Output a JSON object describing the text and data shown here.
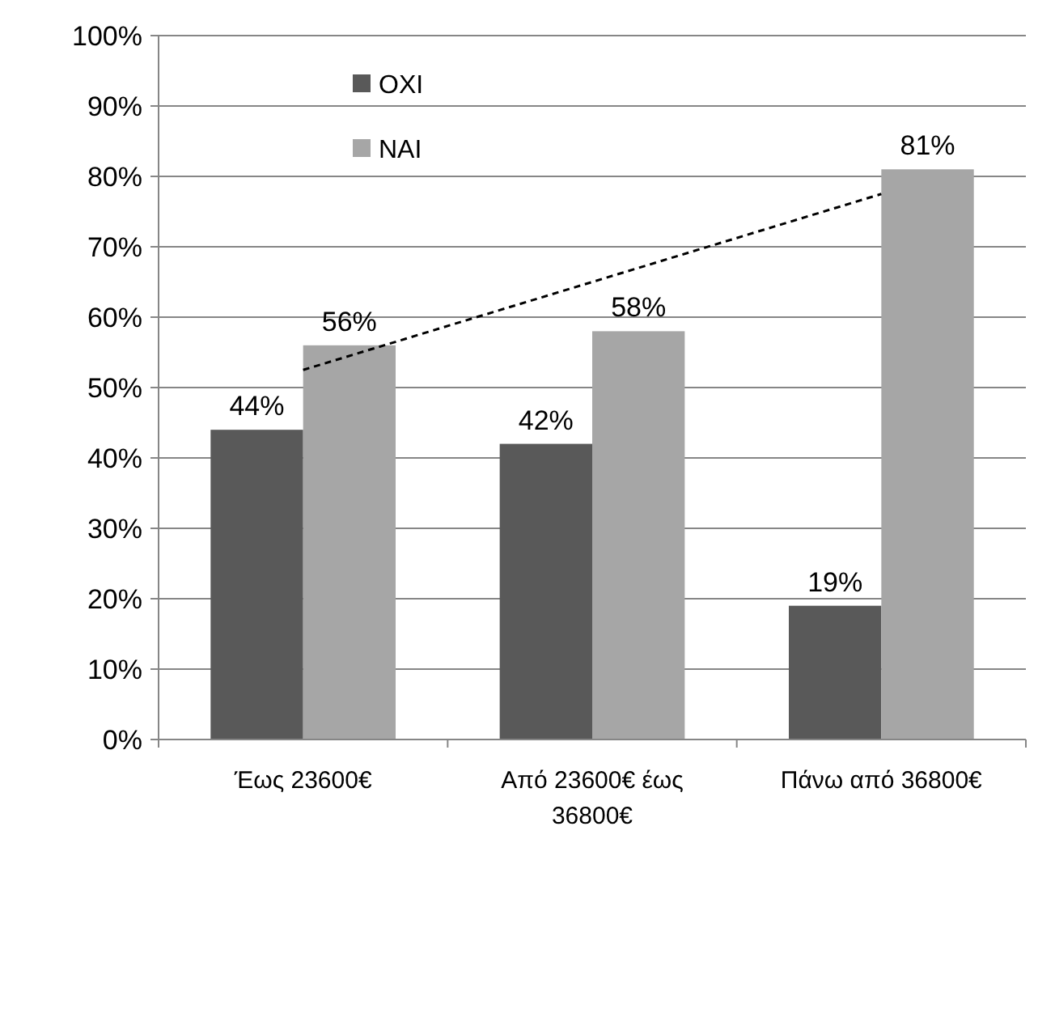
{
  "chart_data": {
    "type": "bar",
    "categories": [
      "Έως 23600€",
      "Από 23600€ έως 36800€",
      "Πάνω από 36800€"
    ],
    "series": [
      {
        "name": "OXI",
        "color": "#595959",
        "values": [
          44,
          42,
          19
        ],
        "value_labels": [
          "44%",
          "42%",
          "19%"
        ]
      },
      {
        "name": "NAI",
        "color": "#a6a6a6",
        "values": [
          56,
          58,
          81
        ],
        "value_labels": [
          "56%",
          "58%",
          "81%"
        ]
      },
      {
        "type": "line",
        "color": "#000000",
        "line_style": "dashed",
        "marker": "none",
        "values": [
          52.5,
          65,
          77.5
        ]
      }
    ],
    "ylim": [
      0,
      100
    ],
    "yticks": [
      {
        "value": 0,
        "label": "0%"
      },
      {
        "value": 10,
        "label": "10%"
      },
      {
        "value": 20,
        "label": "20%"
      },
      {
        "value": 30,
        "label": "30%"
      },
      {
        "value": 40,
        "label": "40%"
      },
      {
        "value": 50,
        "label": "50%"
      },
      {
        "value": 60,
        "label": "60%"
      },
      {
        "value": 70,
        "label": "70%"
      },
      {
        "value": 80,
        "label": "80%"
      },
      {
        "value": 90,
        "label": "90%"
      },
      {
        "value": 100,
        "label": "100%"
      }
    ],
    "grid": "y",
    "legend": "top left"
  }
}
